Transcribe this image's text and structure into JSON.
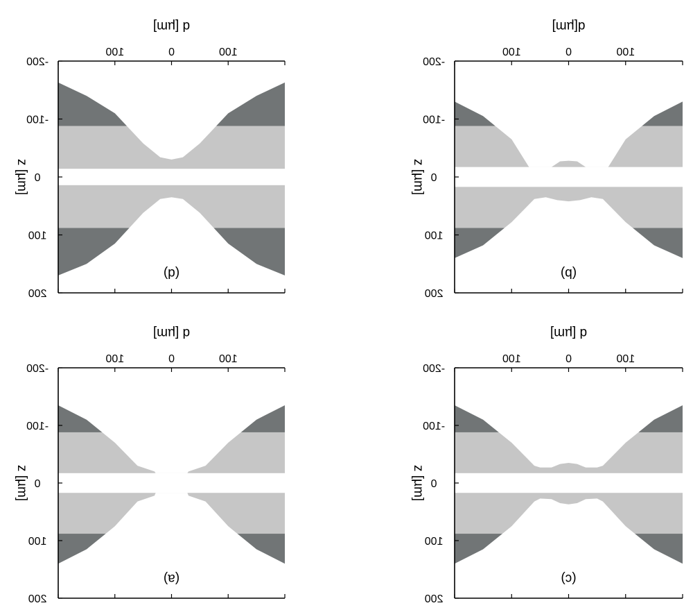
{
  "chart_data": [
    {
      "type": "area",
      "panel_label": "(d)",
      "xlabel": "d [µm]",
      "ylabel": "z [µm]",
      "xticks": [
        "100",
        "0",
        "100"
      ],
      "yticks": [
        "-200",
        "-100",
        "0",
        "100",
        "200"
      ],
      "x_values_um": [
        -200,
        -100,
        0,
        100,
        200
      ],
      "ylim": [
        -200,
        200
      ],
      "center_gap_um": [
        -14,
        14
      ],
      "light_band_um": [
        14,
        88
      ],
      "dark_band_um": [
        88,
        200
      ],
      "top_boundary": {
        "x": [
          -200,
          -150,
          -100,
          -50,
          -20,
          0,
          20,
          50,
          100,
          150,
          200
        ],
        "z": [
          -163,
          -140,
          -110,
          -58,
          -34,
          -30,
          -34,
          -58,
          -110,
          -140,
          -163
        ]
      },
      "bottom_boundary": {
        "x": [
          -200,
          -150,
          -100,
          -50,
          -20,
          0,
          20,
          50,
          100,
          150,
          200
        ],
        "z": [
          170,
          150,
          115,
          62,
          38,
          35,
          38,
          62,
          115,
          150,
          170
        ]
      },
      "colors": {
        "light": "#c6c6c6",
        "dark": "#717576",
        "gap": "#ffffff"
      }
    },
    {
      "type": "area",
      "panel_label": "(b)",
      "xlabel": "d[µm]",
      "ylabel": "z [µm]",
      "xticks": [
        "100",
        "0",
        "100"
      ],
      "yticks": [
        "-200",
        "-100",
        "0",
        "100",
        "200"
      ],
      "x_values_um": [
        -200,
        -100,
        0,
        100,
        200
      ],
      "ylim": [
        -200,
        200
      ],
      "center_gap_um": [
        -17,
        17
      ],
      "light_band_um": [
        17,
        88
      ],
      "dark_band_um": [
        88,
        200
      ],
      "top_boundary": {
        "x": [
          -200,
          -150,
          -100,
          -70,
          -69,
          -30,
          -15,
          0,
          15,
          30,
          69,
          70,
          100,
          150,
          200
        ],
        "z": [
          -130,
          -105,
          -65,
          -18,
          -17,
          -17,
          -27,
          -28,
          -27,
          -17,
          -17,
          -18,
          -65,
          -105,
          -130
        ]
      },
      "bottom_boundary": {
        "x": [
          -200,
          -150,
          -100,
          -60,
          -40,
          -20,
          0,
          20,
          40,
          60,
          100,
          150,
          200
        ],
        "z": [
          140,
          118,
          78,
          38,
          35,
          40,
          42,
          40,
          35,
          38,
          78,
          118,
          140
        ]
      },
      "colors": {
        "light": "#c6c6c6",
        "dark": "#717576",
        "gap": "#ffffff"
      }
    },
    {
      "type": "area",
      "panel_label": "(a)",
      "xlabel": "d [µm]",
      "ylabel": "z [µm]",
      "xticks": [
        "100",
        "0",
        "100"
      ],
      "yticks": [
        "-200",
        "-100",
        "0",
        "100",
        "200"
      ],
      "x_values_um": [
        -200,
        -100,
        0,
        100,
        200
      ],
      "ylim": [
        -200,
        200
      ],
      "center_gap_um": [
        -17,
        17
      ],
      "light_band_um": [
        17,
        88
      ],
      "dark_band_um": [
        88,
        200
      ],
      "top_boundary": {
        "x": [
          -200,
          -150,
          -100,
          -60,
          -30,
          -28,
          28,
          30,
          60,
          100,
          150,
          200
        ],
        "z": [
          -135,
          -110,
          -70,
          -30,
          -20,
          -17,
          -17,
          -20,
          -30,
          -70,
          -110,
          -135
        ]
      },
      "bottom_boundary": {
        "x": [
          -200,
          -150,
          -100,
          -60,
          -30,
          -28,
          28,
          30,
          60,
          100,
          150,
          200
        ],
        "z": [
          140,
          115,
          75,
          32,
          22,
          17,
          17,
          22,
          32,
          75,
          115,
          140
        ]
      },
      "colors": {
        "light": "#c6c6c6",
        "dark": "#717576",
        "gap": "#ffffff"
      }
    },
    {
      "type": "area",
      "panel_label": "(c)",
      "xlabel": "d [µm]",
      "ylabel": "z [µm]",
      "xticks": [
        "100",
        "0",
        "100"
      ],
      "yticks": [
        "-200",
        "-100",
        "0",
        "100",
        "200"
      ],
      "x_values_um": [
        -200,
        -100,
        0,
        100,
        200
      ],
      "ylim": [
        -200,
        200
      ],
      "center_gap_um": [
        -17,
        17
      ],
      "light_band_um": [
        17,
        88
      ],
      "dark_band_um": [
        88,
        200
      ],
      "top_boundary": {
        "x": [
          -200,
          -150,
          -100,
          -60,
          -50,
          -30,
          -15,
          0,
          15,
          30,
          50,
          60,
          100,
          150,
          200
        ],
        "z": [
          -135,
          -110,
          -70,
          -30,
          -27,
          -27,
          -33,
          -35,
          -33,
          -27,
          -27,
          -30,
          -70,
          -110,
          -135
        ]
      },
      "bottom_boundary": {
        "x": [
          -200,
          -150,
          -100,
          -60,
          -50,
          -30,
          -15,
          0,
          15,
          30,
          50,
          60,
          100,
          150,
          200
        ],
        "z": [
          140,
          115,
          75,
          32,
          27,
          28,
          35,
          37,
          35,
          28,
          27,
          32,
          75,
          115,
          140
        ]
      },
      "colors": {
        "light": "#c6c6c6",
        "dark": "#717576",
        "gap": "#ffffff"
      }
    }
  ]
}
